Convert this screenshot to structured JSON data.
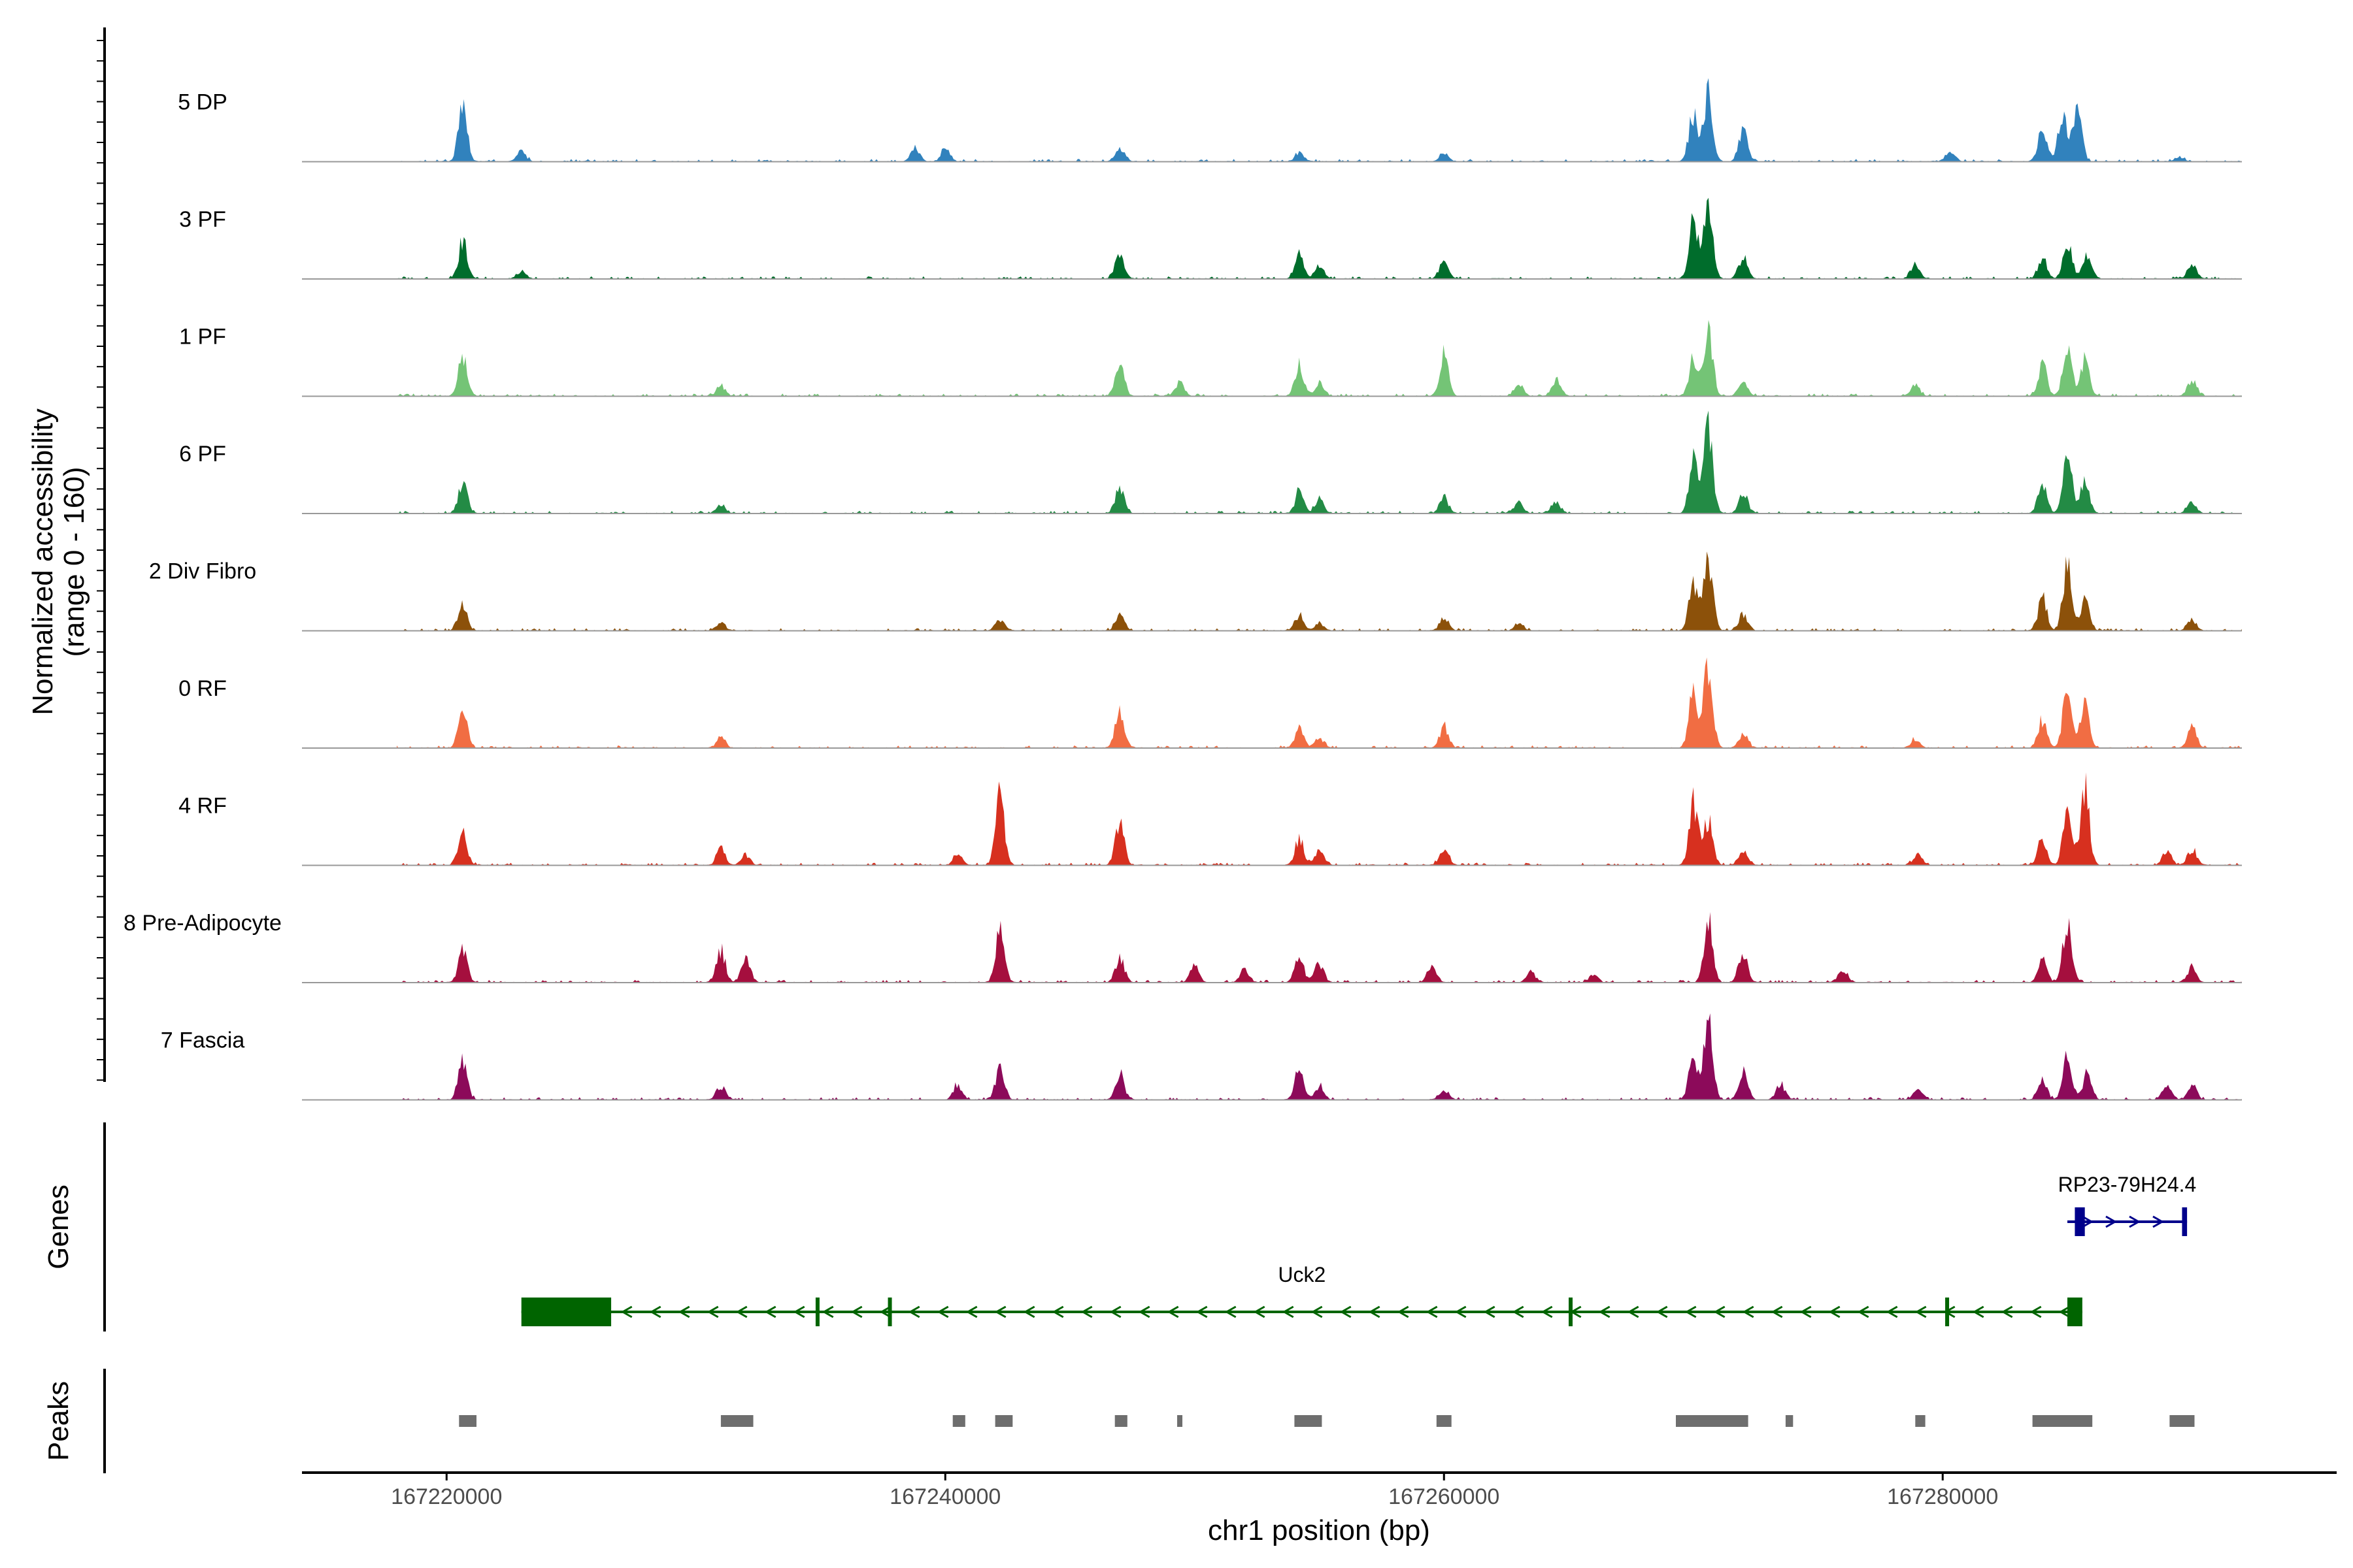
{
  "chart_data": {
    "type": "area",
    "title": "",
    "xlabel": "chr1 position (bp)",
    "ylabel": "Normalized accessibility",
    "ylabel_sub": "(range 0 - 160)",
    "y_range": [
      0,
      160
    ],
    "xlim": [
      167214200,
      167295800
    ],
    "x_ticks": [
      167220000,
      167240000,
      167260000,
      167280000
    ],
    "x_tick_labels": [
      "167220000",
      "167240000",
      "167260000",
      "167280000"
    ],
    "genes_label": "Genes",
    "peaks_label": "Peaks",
    "tracks": [
      {
        "name": "5 DP",
        "color": "#3182BD",
        "peaks": [
          [
            167220650,
            100
          ],
          [
            167223000,
            20
          ],
          [
            167238800,
            25
          ],
          [
            167240000,
            25
          ],
          [
            167247000,
            25
          ],
          [
            167254200,
            15
          ],
          [
            167260000,
            15
          ],
          [
            167270000,
            90
          ],
          [
            167270600,
            130
          ],
          [
            167272000,
            60
          ],
          [
            167280300,
            20
          ],
          [
            167284000,
            60
          ],
          [
            167284800,
            90
          ],
          [
            167285400,
            110
          ],
          [
            167289500,
            10
          ]
        ]
      },
      {
        "name": "3 PF",
        "color": "#006D2C",
        "peaks": [
          [
            167220650,
            70
          ],
          [
            167223000,
            15
          ],
          [
            167247000,
            50
          ],
          [
            167254200,
            45
          ],
          [
            167255000,
            25
          ],
          [
            167260000,
            30
          ],
          [
            167270000,
            110
          ],
          [
            167270600,
            160
          ],
          [
            167272000,
            40
          ],
          [
            167278900,
            25
          ],
          [
            167284000,
            40
          ],
          [
            167285000,
            70
          ],
          [
            167285800,
            45
          ],
          [
            167290000,
            30
          ]
        ]
      },
      {
        "name": "1 PF",
        "color": "#74C476",
        "peaks": [
          [
            167220650,
            80
          ],
          [
            167231000,
            20
          ],
          [
            167247000,
            60
          ],
          [
            167249400,
            25
          ],
          [
            167254200,
            60
          ],
          [
            167255000,
            25
          ],
          [
            167260000,
            80
          ],
          [
            167263000,
            25
          ],
          [
            167264500,
            30
          ],
          [
            167270000,
            70
          ],
          [
            167270600,
            130
          ],
          [
            167272000,
            30
          ],
          [
            167278900,
            20
          ],
          [
            167284000,
            60
          ],
          [
            167285000,
            100
          ],
          [
            167285700,
            70
          ],
          [
            167290000,
            30
          ]
        ]
      },
      {
        "name": "6 PF",
        "color": "#238B45",
        "peaks": [
          [
            167220650,
            60
          ],
          [
            167231000,
            15
          ],
          [
            167247000,
            50
          ],
          [
            167254200,
            40
          ],
          [
            167255000,
            25
          ],
          [
            167260000,
            30
          ],
          [
            167263000,
            20
          ],
          [
            167264500,
            20
          ],
          [
            167270000,
            100
          ],
          [
            167270600,
            170
          ],
          [
            167272000,
            40
          ],
          [
            167284000,
            60
          ],
          [
            167285000,
            120
          ],
          [
            167285700,
            60
          ],
          [
            167290000,
            20
          ]
        ]
      },
      {
        "name": "2 Div Fibro",
        "color": "#8C510A",
        "peaks": [
          [
            167220650,
            50
          ],
          [
            167231000,
            15
          ],
          [
            167242200,
            20
          ],
          [
            167247000,
            30
          ],
          [
            167254200,
            30
          ],
          [
            167255000,
            15
          ],
          [
            167260000,
            25
          ],
          [
            167263000,
            15
          ],
          [
            167270000,
            90
          ],
          [
            167270600,
            140
          ],
          [
            167272000,
            30
          ],
          [
            167284000,
            60
          ],
          [
            167285000,
            130
          ],
          [
            167285700,
            60
          ],
          [
            167290000,
            20
          ]
        ]
      },
      {
        "name": "0 RF",
        "color": "#F16D43",
        "peaks": [
          [
            167220650,
            70
          ],
          [
            167231000,
            20
          ],
          [
            167247000,
            75
          ],
          [
            167254200,
            35
          ],
          [
            167255000,
            20
          ],
          [
            167260000,
            40
          ],
          [
            167270000,
            100
          ],
          [
            167270600,
            160
          ],
          [
            167272000,
            25
          ],
          [
            167278900,
            15
          ],
          [
            167284000,
            50
          ],
          [
            167285000,
            110
          ],
          [
            167285700,
            80
          ],
          [
            167290000,
            40
          ]
        ]
      },
      {
        "name": "4 RF",
        "color": "#D7301F",
        "peaks": [
          [
            167220650,
            60
          ],
          [
            167231000,
            30
          ],
          [
            167232000,
            20
          ],
          [
            167240500,
            20
          ],
          [
            167242200,
            130
          ],
          [
            167247000,
            80
          ],
          [
            167254200,
            50
          ],
          [
            167255000,
            30
          ],
          [
            167260000,
            35
          ],
          [
            167270000,
            120
          ],
          [
            167270600,
            90
          ],
          [
            167272000,
            30
          ],
          [
            167279000,
            20
          ],
          [
            167284000,
            50
          ],
          [
            167285000,
            100
          ],
          [
            167285700,
            150
          ],
          [
            167289000,
            30
          ],
          [
            167290000,
            30
          ]
        ]
      },
      {
        "name": "8 Pre-Adipocyte",
        "color": "#A50F3E",
        "peaks": [
          [
            167220650,
            60
          ],
          [
            167231000,
            60
          ],
          [
            167232000,
            50
          ],
          [
            167242200,
            100
          ],
          [
            167247000,
            50
          ],
          [
            167250000,
            30
          ],
          [
            167252000,
            25
          ],
          [
            167254200,
            50
          ],
          [
            167255000,
            35
          ],
          [
            167259500,
            30
          ],
          [
            167263500,
            20
          ],
          [
            167266000,
            15
          ],
          [
            167270600,
            120
          ],
          [
            167272000,
            60
          ],
          [
            167276000,
            25
          ],
          [
            167284000,
            40
          ],
          [
            167285000,
            120
          ],
          [
            167290000,
            30
          ]
        ]
      },
      {
        "name": "7 Fascia",
        "color": "#8C0A5A",
        "peaks": [
          [
            167220650,
            70
          ],
          [
            167231000,
            25
          ],
          [
            167240500,
            30
          ],
          [
            167242200,
            60
          ],
          [
            167247000,
            50
          ],
          [
            167254200,
            60
          ],
          [
            167255000,
            25
          ],
          [
            167260000,
            20
          ],
          [
            167270000,
            80
          ],
          [
            167270600,
            160
          ],
          [
            167272000,
            60
          ],
          [
            167273500,
            30
          ],
          [
            167279000,
            20
          ],
          [
            167284000,
            40
          ],
          [
            167285000,
            80
          ],
          [
            167285800,
            50
          ],
          [
            167289000,
            30
          ],
          [
            167290000,
            30
          ]
        ]
      }
    ],
    "genes": [
      {
        "name": "Uck2",
        "color": "#006400",
        "start": 167223000,
        "end": 167285600,
        "strand": "-",
        "exons": [
          [
            167223000,
            167226600
          ],
          [
            167234800,
            167234950
          ],
          [
            167237700,
            167237850
          ],
          [
            167265000,
            167265150
          ],
          [
            167280100,
            167280250
          ],
          [
            167285000,
            167285600
          ]
        ]
      },
      {
        "name": "RP23-79H24.4",
        "color": "#00008B",
        "start": 167285000,
        "end": 167289800,
        "strand": "+",
        "exons": [
          [
            167285300,
            167285700
          ],
          [
            167289600,
            167289800
          ]
        ]
      }
    ],
    "peak_regions": [
      [
        167220500,
        167221200
      ],
      [
        167231000,
        167232300
      ],
      [
        167240300,
        167240800
      ],
      [
        167242000,
        167242700
      ],
      [
        167246800,
        167247300
      ],
      [
        167249300,
        167249500
      ],
      [
        167254000,
        167255100
      ],
      [
        167259700,
        167260300
      ],
      [
        167269300,
        167272200
      ],
      [
        167273700,
        167274000
      ],
      [
        167278900,
        167279300
      ],
      [
        167283600,
        167286000
      ],
      [
        167289100,
        167290100
      ]
    ]
  }
}
